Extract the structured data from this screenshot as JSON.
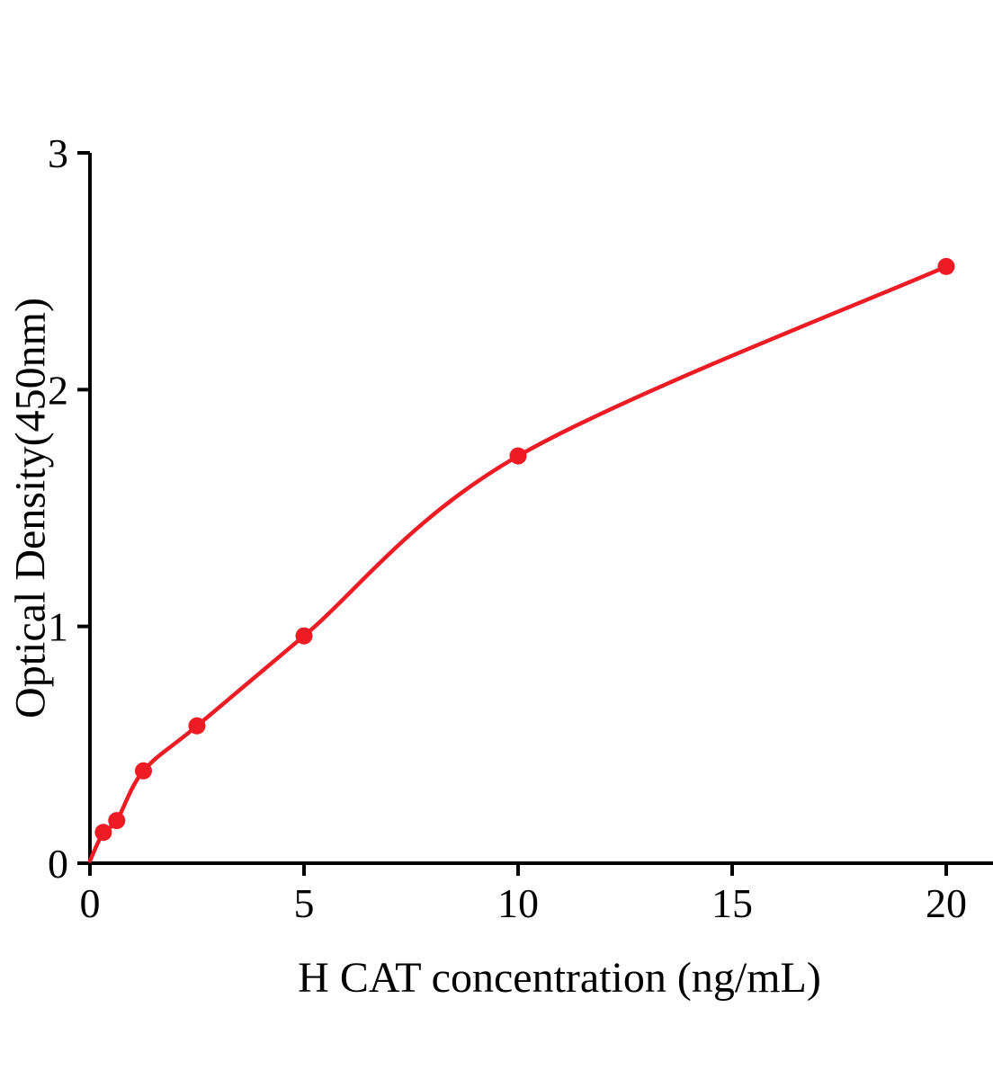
{
  "chart_data": {
    "type": "scatter",
    "title": "",
    "xlabel": "H CAT concentration (ng/mL)",
    "ylabel": "Optical Density(450nm)",
    "x": [
      0.313,
      0.625,
      1.25,
      2.5,
      5,
      10,
      20
    ],
    "y": [
      0.13,
      0.18,
      0.39,
      0.58,
      0.96,
      1.72,
      2.52
    ],
    "curve": {
      "type": "fitted-smooth",
      "start": {
        "x": 0,
        "y": 0.01
      }
    },
    "xlim": [
      0,
      21
    ],
    "ylim": [
      0,
      3
    ],
    "x_ticks": [
      0,
      5,
      10,
      15,
      20
    ],
    "y_ticks": [
      0,
      1,
      2,
      3
    ],
    "grid": false,
    "legend": "none",
    "point_color": "#ed1c24",
    "line_color": "#ed1c24",
    "axis_color": "#000000",
    "marker_radius": 9.5
  }
}
